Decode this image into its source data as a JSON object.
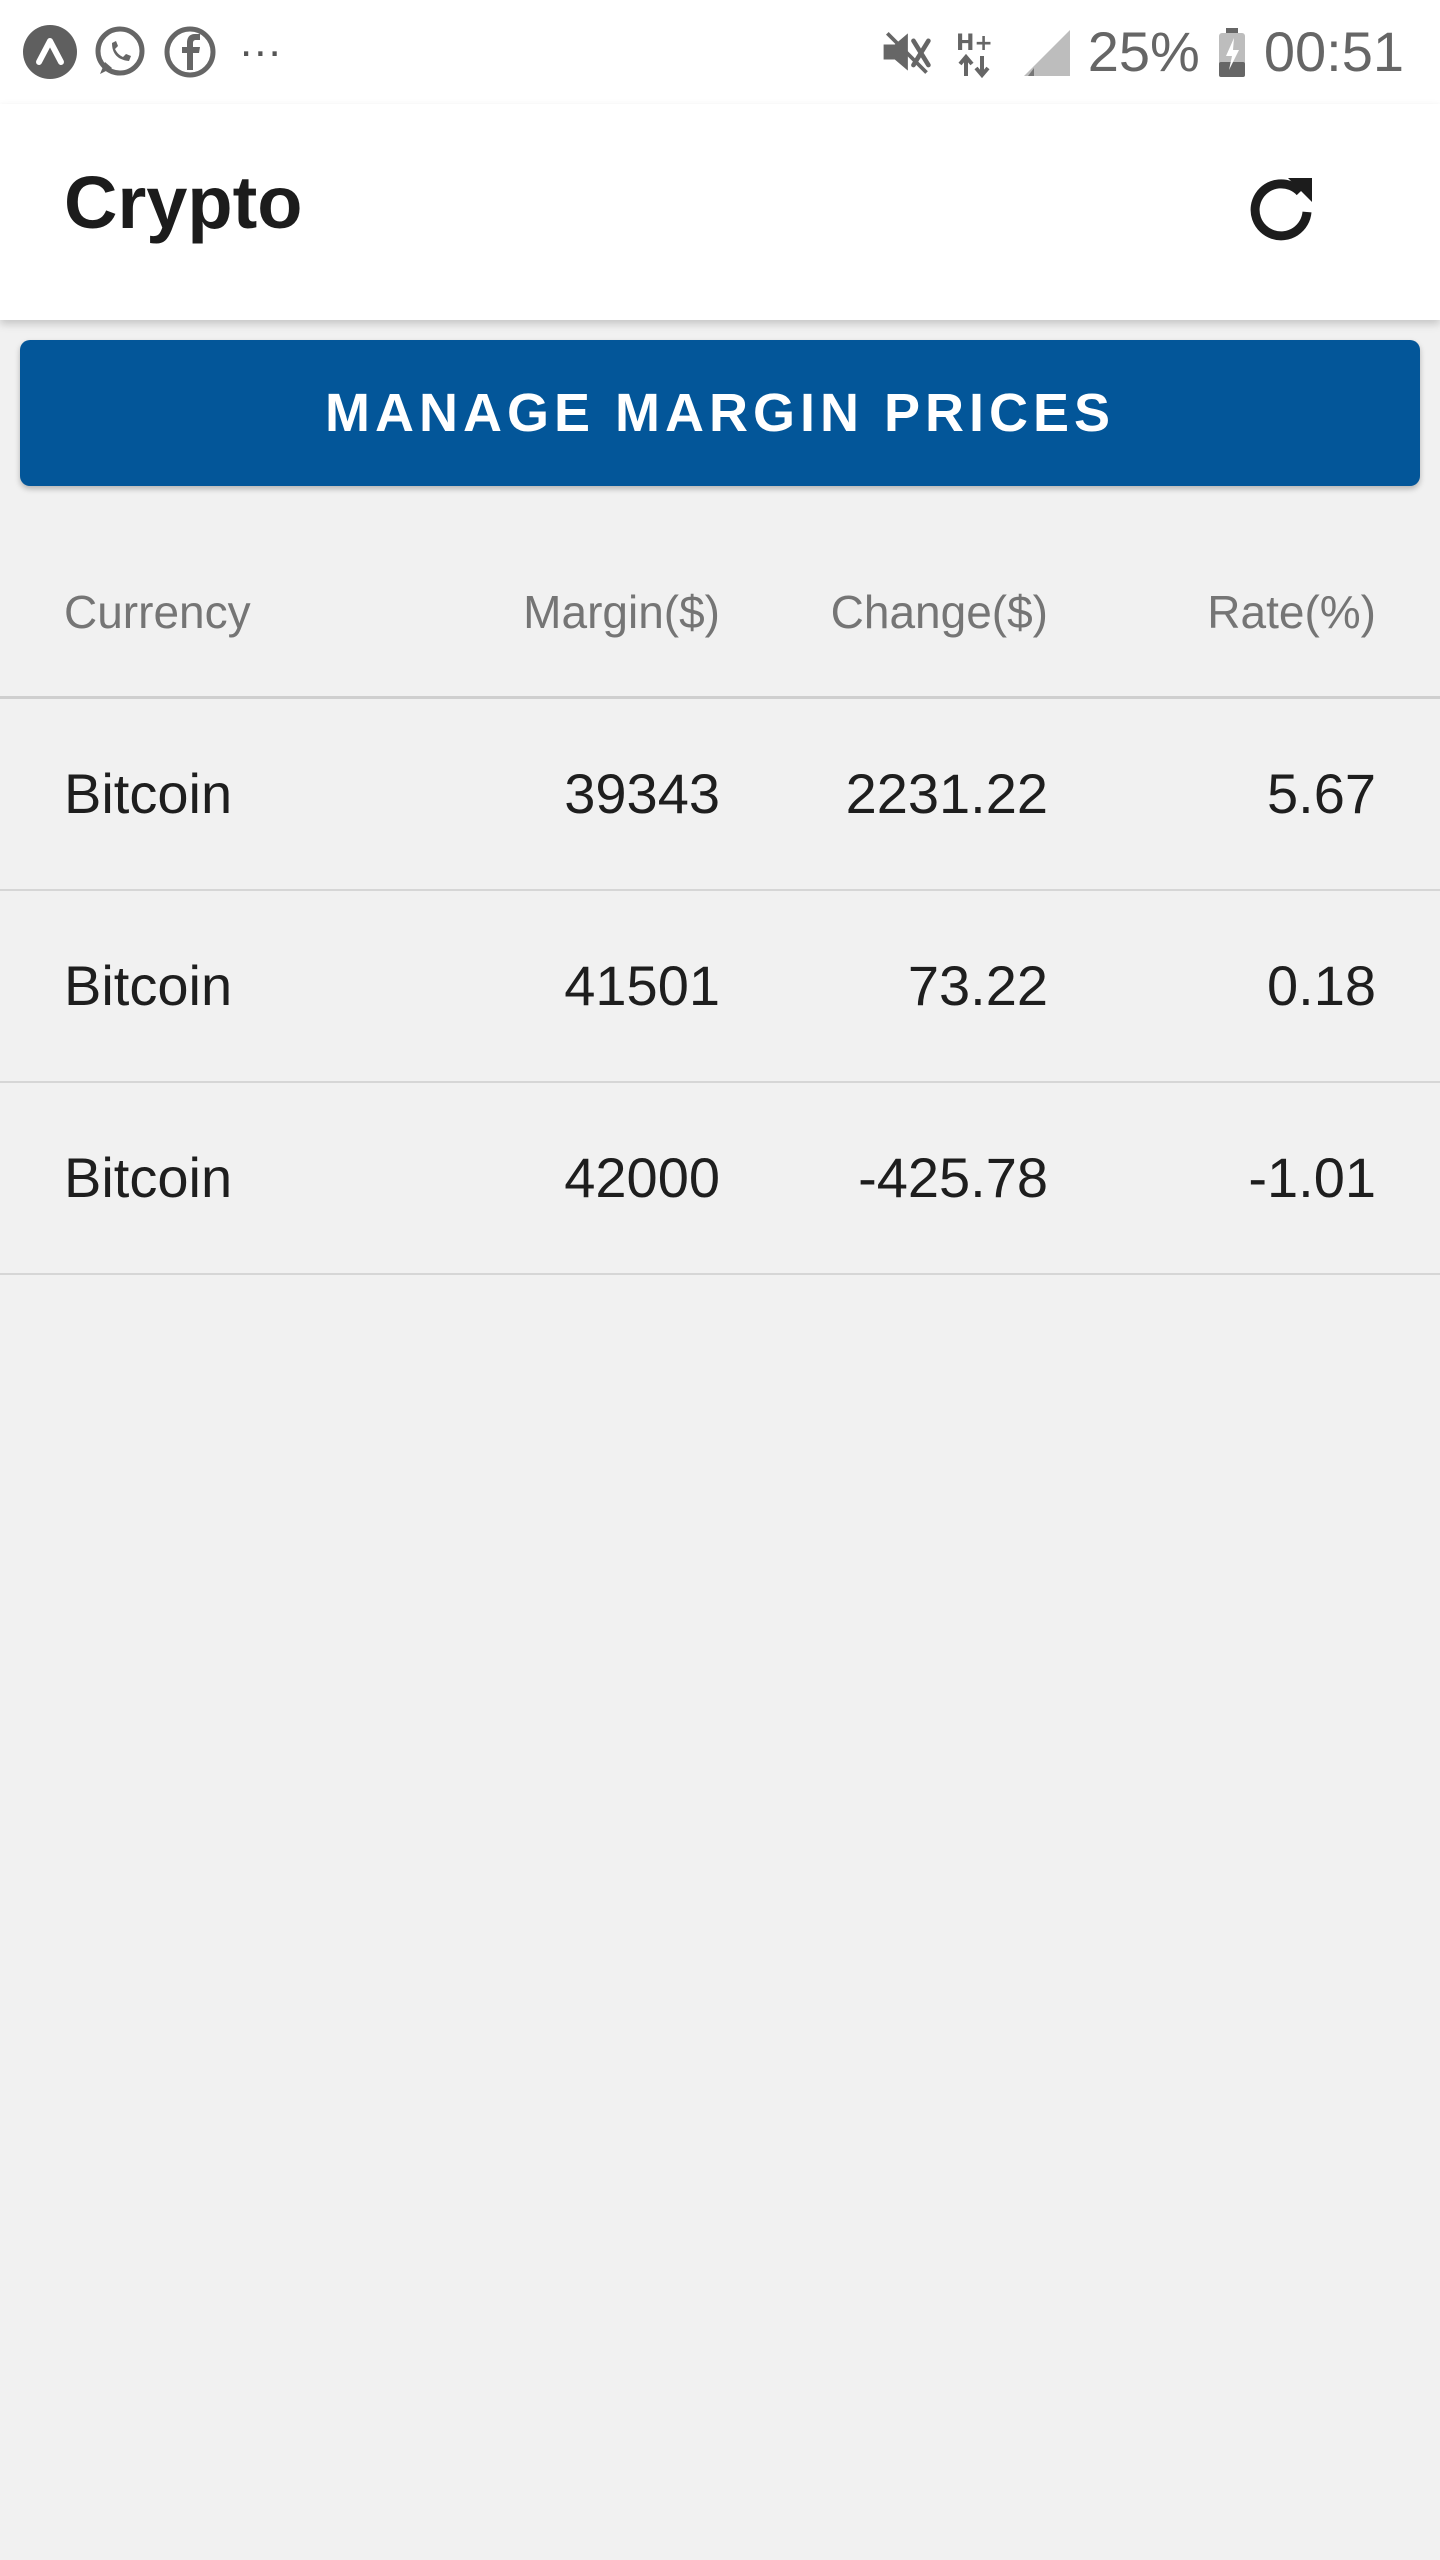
{
  "status_bar": {
    "icons_left": [
      "app-icon",
      "whatsapp-icon",
      "facebook-icon"
    ],
    "overflow": "...",
    "icons_right": [
      "vibrate-mute-icon",
      "network-hplus-icon",
      "signal-icon"
    ],
    "battery_percent": "25%",
    "time": "00:51"
  },
  "app_bar": {
    "title": "Crypto",
    "refresh_icon": "refresh-icon"
  },
  "manage_button": {
    "label": "MANAGE MARGIN PRICES",
    "color": "#035699"
  },
  "table": {
    "headers": [
      "Currency",
      "Margin($)",
      "Change($)",
      "Rate(%)"
    ],
    "rows": [
      [
        "Bitcoin",
        "39343",
        "2231.22",
        "5.67"
      ],
      [
        "Bitcoin",
        "41501",
        "73.22",
        "0.18"
      ],
      [
        "Bitcoin",
        "42000",
        "-425.78",
        "-1.01"
      ]
    ]
  }
}
